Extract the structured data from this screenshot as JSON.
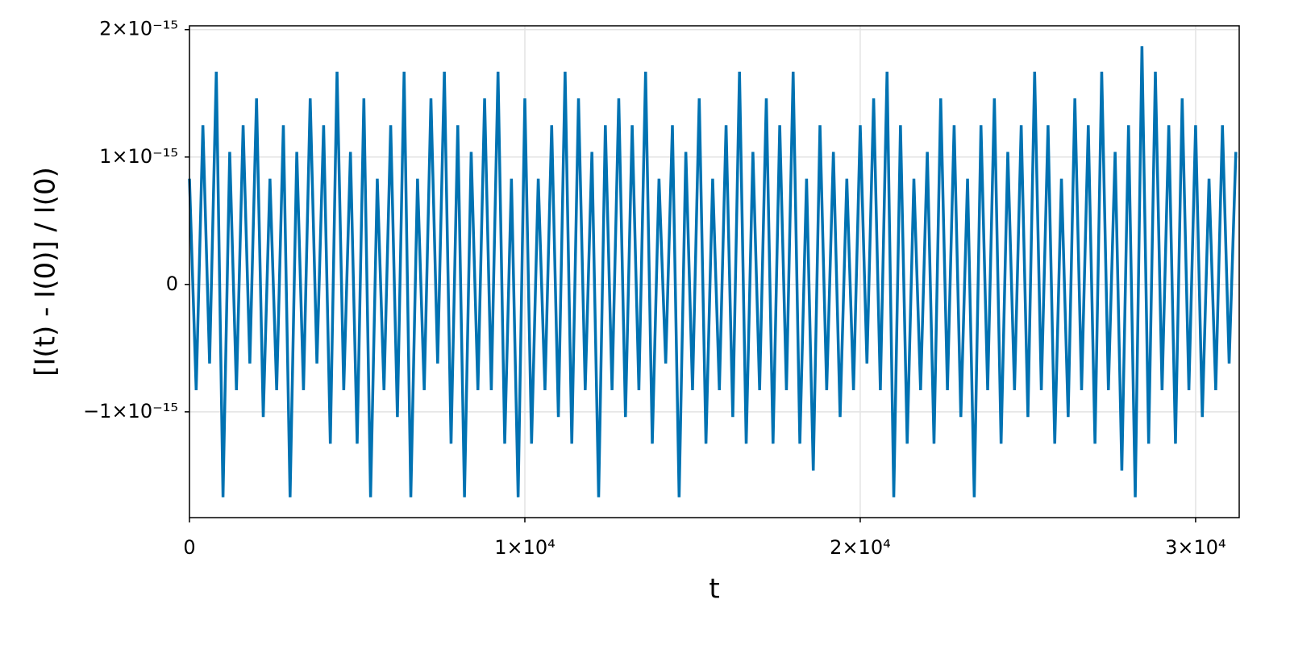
{
  "chart_data": {
    "type": "line",
    "x_label": "t",
    "y_label": "[I(t) - I(0)] / I(0)",
    "x": [
      0,
      200,
      400,
      600,
      800,
      1000,
      1200,
      1400,
      1600,
      1800,
      2000,
      2200,
      2400,
      2600,
      2800,
      3000,
      3200,
      3400,
      3600,
      3800,
      4000,
      4200,
      4400,
      4600,
      4800,
      5000,
      5200,
      5400,
      5600,
      5800,
      6000,
      6200,
      6400,
      6600,
      6800,
      7000,
      7200,
      7400,
      7600,
      7800,
      8000,
      8200,
      8400,
      8600,
      8800,
      9000,
      9200,
      9400,
      9600,
      9800,
      10000,
      10200,
      10400,
      10600,
      10800,
      11000,
      11200,
      11400,
      11600,
      11800,
      12000,
      12200,
      12400,
      12600,
      12800,
      13000,
      13200,
      13400,
      13600,
      13800,
      14000,
      14200,
      14400,
      14600,
      14800,
      15000,
      15200,
      15400,
      15600,
      15800,
      16000,
      16200,
      16400,
      16600,
      16800,
      17000,
      17200,
      17400,
      17600,
      17800,
      18000,
      18200,
      18400,
      18600,
      18800,
      19000,
      19200,
      19400,
      19600,
      19800,
      20000,
      20200,
      20400,
      20600,
      20800,
      21000,
      21200,
      21400,
      21600,
      21800,
      22000,
      22200,
      22400,
      22600,
      22800,
      23000,
      23200,
      23400,
      23600,
      23800,
      24000,
      24200,
      24400,
      24600,
      24800,
      25000,
      25200,
      25400,
      25600,
      25800,
      26000,
      26200,
      26400,
      26600,
      26800,
      27000,
      27200,
      27400,
      27600,
      27800,
      28000,
      28200,
      28400,
      28600,
      28800,
      29000,
      29200,
      29400,
      29600,
      29800,
      30000,
      30200,
      30400,
      30600,
      30800,
      31000,
      31200
    ],
    "series": [
      {
        "color": "#0072b2",
        "values": [
          8.3e-16,
          -8.3e-16,
          1.25e-15,
          -6.2e-16,
          1.67e-15,
          -1.67e-15,
          1.04e-15,
          -8.3e-16,
          1.25e-15,
          -6.2e-16,
          1.46e-15,
          -1.04e-15,
          8.3e-16,
          -8.3e-16,
          1.25e-15,
          -1.67e-15,
          1.04e-15,
          -8.3e-16,
          1.46e-15,
          -6.2e-16,
          1.25e-15,
          -1.25e-15,
          1.67e-15,
          -8.3e-16,
          1.04e-15,
          -1.25e-15,
          1.46e-15,
          -1.67e-15,
          8.3e-16,
          -8.3e-16,
          1.25e-15,
          -1.04e-15,
          1.67e-15,
          -1.67e-15,
          8.3e-16,
          -8.3e-16,
          1.46e-15,
          -6.2e-16,
          1.67e-15,
          -1.25e-15,
          1.25e-15,
          -1.67e-15,
          1.04e-15,
          -8.3e-16,
          1.46e-15,
          -8.3e-16,
          1.67e-15,
          -1.25e-15,
          8.3e-16,
          -1.67e-15,
          1.46e-15,
          -1.25e-15,
          8.3e-16,
          -8.3e-16,
          1.25e-15,
          -1.04e-15,
          1.67e-15,
          -1.25e-15,
          1.46e-15,
          -8.3e-16,
          1.04e-15,
          -1.67e-15,
          1.25e-15,
          -8.3e-16,
          1.46e-15,
          -1.04e-15,
          1.25e-15,
          -8.3e-16,
          1.67e-15,
          -1.25e-15,
          8.3e-16,
          -6.2e-16,
          1.25e-15,
          -1.67e-15,
          1.04e-15,
          -8.3e-16,
          1.46e-15,
          -1.25e-15,
          8.3e-16,
          -8.3e-16,
          1.25e-15,
          -1.04e-15,
          1.67e-15,
          -1.25e-15,
          1.04e-15,
          -8.3e-16,
          1.46e-15,
          -1.25e-15,
          1.25e-15,
          -8.3e-16,
          1.67e-15,
          -1.25e-15,
          8.3e-16,
          -1.46e-15,
          1.25e-15,
          -8.3e-16,
          1.04e-15,
          -1.04e-15,
          8.3e-16,
          -8.3e-16,
          1.25e-15,
          -6.2e-16,
          1.46e-15,
          -8.3e-16,
          1.67e-15,
          -1.67e-15,
          1.25e-15,
          -1.25e-15,
          8.3e-16,
          -8.3e-16,
          1.04e-15,
          -1.25e-15,
          1.46e-15,
          -8.3e-16,
          1.25e-15,
          -1.04e-15,
          8.3e-16,
          -1.67e-15,
          1.25e-15,
          -8.3e-16,
          1.46e-15,
          -1.25e-15,
          1.04e-15,
          -8.3e-16,
          1.25e-15,
          -1.04e-15,
          1.67e-15,
          -8.3e-16,
          1.25e-15,
          -1.25e-15,
          8.3e-16,
          -1.04e-15,
          1.46e-15,
          -8.3e-16,
          1.25e-15,
          -1.25e-15,
          1.67e-15,
          -8.3e-16,
          1.04e-15,
          -1.46e-15,
          1.25e-15,
          -1.67e-15,
          1.87e-15,
          -1.25e-15,
          1.67e-15,
          -8.3e-16,
          1.25e-15,
          -1.25e-15,
          1.46e-15,
          -8.3e-16,
          1.25e-15,
          -1.04e-15,
          8.3e-16,
          -8.3e-16,
          1.25e-15,
          -6.2e-16,
          1.04e-15
        ]
      }
    ],
    "xlim": [
      0,
      31300
    ],
    "ylim": [
      -1.83e-15,
      2.03e-15
    ],
    "xticks": [
      0,
      {
        "value": 10000,
        "label": "1×10⁴"
      },
      {
        "value": 20000,
        "label": "2×10⁴"
      },
      {
        "value": 30000,
        "label": "3×10⁴"
      }
    ],
    "yticks": [
      {
        "value": -1e-15,
        "label": "−1×10⁻¹⁵"
      },
      0,
      {
        "value": 1e-15,
        "label": "1×10⁻¹⁵"
      },
      {
        "value": 2e-15,
        "label": "2×10⁻¹⁵"
      }
    ],
    "grid": true
  }
}
